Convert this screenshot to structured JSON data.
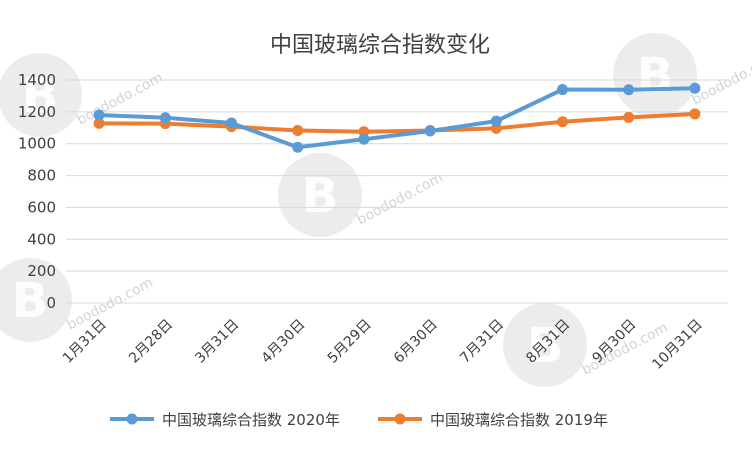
{
  "chart_data": {
    "type": "line",
    "title": "中国玻璃综合指数变化",
    "categories": [
      "1月31日",
      "2月28日",
      "3月31日",
      "4月30日",
      "5月29日",
      "6月30日",
      "7月31日",
      "8月31日",
      "9月30日",
      "10月31日"
    ],
    "series": [
      {
        "name": "中国玻璃综合指数 2020年",
        "color": "#5B9BD5",
        "values": [
          1180,
          1163,
          1130,
          978,
          1028,
          1080,
          1142,
          1340,
          1339,
          1348
        ]
      },
      {
        "name": "中国玻璃综合指数 2019年",
        "color": "#ED7D31",
        "values": [
          1128,
          1126,
          1107,
          1083,
          1075,
          1083,
          1096,
          1138,
          1165,
          1187
        ]
      }
    ],
    "ylim": [
      0,
      1400
    ],
    "yticks": [
      "0",
      "200",
      "400",
      "600",
      "800",
      "1000",
      "1200",
      "1400"
    ],
    "grid": true,
    "legend_position": "bottom"
  },
  "watermarks": [
    {
      "letter": "B",
      "text": "boododo.com"
    },
    {
      "letter": "B",
      "text": "boododo.com"
    },
    {
      "letter": "B",
      "text": "boododo.com"
    },
    {
      "letter": "B",
      "text": "boododo.com"
    },
    {
      "letter": "B",
      "text": "boododo.com"
    }
  ]
}
